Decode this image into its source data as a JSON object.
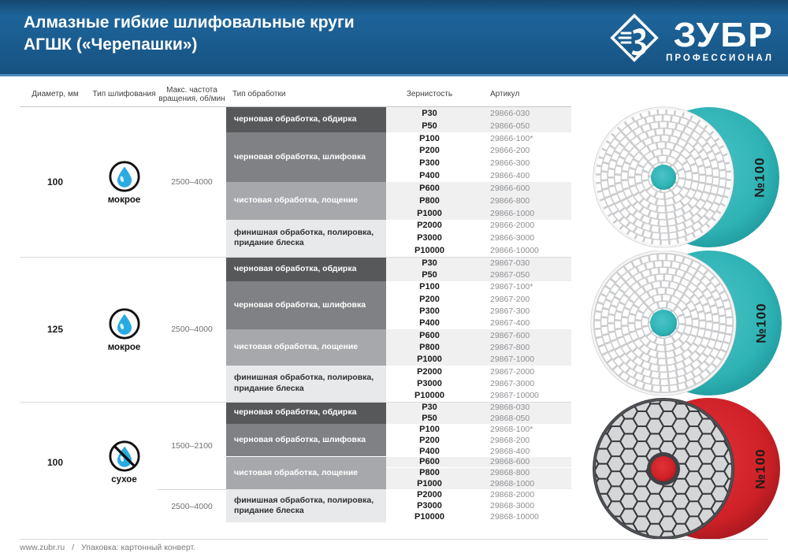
{
  "header": {
    "title_line1": "Алмазные гибкие шлифовальные круги",
    "title_line2": "АГШК («Черепашки»)",
    "brand": "ЗУБР",
    "brand_sub": "ПРОФЕССИОНАЛ"
  },
  "colors": {
    "banner_blue": "#1d649a",
    "banner_strip": "#4e8bbd",
    "band_tones": {
      "dark": "#57585a",
      "medium": "#7f8184",
      "light": "#a6a8ab",
      "pale": "#e8e9ea"
    },
    "pale_text": "#2f3033",
    "zebra_gray": "#f0f0f1",
    "wet_backing": "#2fb3b5",
    "dry_backing": "#ce2127",
    "drop_blue": "#29abe2"
  },
  "table": {
    "columns": [
      "Диаметр, мм",
      "Тип шлифования",
      "Макс. частота вращения, об/мин",
      "Тип обработки",
      "Зернистость",
      "Артикул"
    ],
    "groups": [
      {
        "diameter": "100",
        "grinding_type": "мокрое",
        "grinding_icon": "water-drop-icon",
        "speeds": [
          {
            "value": "2500–4000",
            "row_start": 0,
            "row_count": 12,
            "divider": false
          }
        ],
        "bands": [
          {
            "label": "черновая обработка, обдирка",
            "tone": "dark",
            "rows": [
              {
                "grit": "P30",
                "sku": "29866-030"
              },
              {
                "grit": "P50",
                "sku": "29866-050"
              }
            ]
          },
          {
            "label": "черновая обработка, шлифовка",
            "tone": "medium",
            "rows": [
              {
                "grit": "P100",
                "sku": "29866-100*"
              },
              {
                "grit": "P200",
                "sku": "29866-200"
              },
              {
                "grit": "P300",
                "sku": "29866-300"
              },
              {
                "grit": "P400",
                "sku": "29866-400"
              }
            ]
          },
          {
            "label": "чистовая обработка, лощение",
            "tone": "light",
            "rows": [
              {
                "grit": "P600",
                "sku": "29866-600"
              },
              {
                "grit": "P800",
                "sku": "29866-800"
              },
              {
                "grit": "P1000",
                "sku": "29866-1000"
              }
            ]
          },
          {
            "label": "финишная обработка, полировка, придание блеска",
            "tone": "pale",
            "rows": [
              {
                "grit": "P2000",
                "sku": "29866-2000"
              },
              {
                "grit": "P3000",
                "sku": "29866-3000"
              },
              {
                "grit": "P10000",
                "sku": "29866-10000"
              }
            ]
          }
        ]
      },
      {
        "diameter": "125",
        "grinding_type": "мокрое",
        "grinding_icon": "water-drop-icon",
        "speeds": [
          {
            "value": "2500–4000",
            "row_start": 0,
            "row_count": 12,
            "divider": false
          }
        ],
        "bands": [
          {
            "label": "черновая обработка, обдирка",
            "tone": "dark",
            "rows": [
              {
                "grit": "P30",
                "sku": "29867-030"
              },
              {
                "grit": "P50",
                "sku": "29867-050"
              }
            ]
          },
          {
            "label": "черновая обработка, шлифовка",
            "tone": "medium",
            "rows": [
              {
                "grit": "P100",
                "sku": "29867-100*"
              },
              {
                "grit": "P200",
                "sku": "29867-200"
              },
              {
                "grit": "P300",
                "sku": "29867-300"
              },
              {
                "grit": "P400",
                "sku": "29867-400"
              }
            ]
          },
          {
            "label": "чистовая обработка, лощение",
            "tone": "light",
            "rows": [
              {
                "grit": "P600",
                "sku": "29867-600"
              },
              {
                "grit": "P800",
                "sku": "29867-800"
              },
              {
                "grit": "P1000",
                "sku": "29867-1000"
              }
            ]
          },
          {
            "label": "финишная обработка, полировка, придание блеска",
            "tone": "pale",
            "rows": [
              {
                "grit": "P2000",
                "sku": "29867-2000"
              },
              {
                "grit": "P3000",
                "sku": "29867-3000"
              },
              {
                "grit": "P10000",
                "sku": "29867-10000"
              }
            ]
          }
        ]
      },
      {
        "diameter": "100",
        "grinding_type": "сухое",
        "grinding_icon": "water-drop-crossed-icon",
        "speeds": [
          {
            "value": "1500–2100",
            "row_start": 0,
            "row_count": 8,
            "divider": false
          },
          {
            "value": "2500–4000",
            "row_start": 8,
            "row_count": 3,
            "divider": true
          }
        ],
        "bands": [
          {
            "label": "черновая обработка, обдирка",
            "tone": "dark",
            "rows": [
              {
                "grit": "P30",
                "sku": "29868-030"
              },
              {
                "grit": "P50",
                "sku": "29868-050"
              }
            ]
          },
          {
            "label": "черновая обработка, шлифовка",
            "tone": "medium",
            "rows": [
              {
                "grit": "P100",
                "sku": "29868-100*"
              },
              {
                "grit": "P200",
                "sku": "29868-200"
              },
              {
                "grit": "P400",
                "sku": "29868-400"
              }
            ]
          },
          {
            "label": "чистовая обработка, лощение",
            "tone": "light",
            "rows": [
              {
                "grit": "P600",
                "sku": "29868-600"
              },
              {
                "grit": "P800",
                "sku": "29868-800"
              },
              {
                "grit": "P1000",
                "sku": "29868-1000"
              }
            ]
          },
          {
            "label": "финишная обработка, полировка, придание блеска",
            "tone": "pale",
            "rows": [
              {
                "grit": "P2000",
                "sku": "29868-2000"
              },
              {
                "grit": "P3000",
                "sku": "29868-3000"
              },
              {
                "grit": "P10000",
                "sku": "29868-10000"
              }
            ]
          }
        ]
      }
    ]
  },
  "products": [
    {
      "marking": "№100",
      "style": "wet",
      "name": "product-photo-wet-100"
    },
    {
      "marking": "№100",
      "style": "wet",
      "name": "product-photo-wet-125"
    },
    {
      "marking": "№100",
      "style": "dry",
      "name": "product-photo-dry-100"
    }
  ],
  "footer": {
    "site": "www.zubr.ru",
    "separator": "/",
    "packaging": "Упаковка: картонный конверт."
  }
}
